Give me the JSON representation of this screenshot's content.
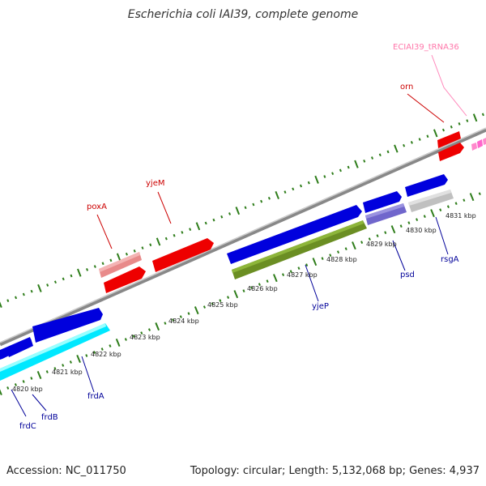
{
  "title": "Escherichia coli IAI39, complete genome",
  "accession": "Accession: NC_011750",
  "summary": "Topology: circular; Length: 5,132,068 bp; Genes: 4,937",
  "colors": {
    "red": "#ee0000",
    "pink": "#e88a8a",
    "blue": "#0000dd",
    "lightblue": "#8077d8",
    "gray": "#c0c0c0",
    "cyan": "#00ffff",
    "olive": "#6b8e23",
    "magenta": "#ff66cc",
    "backbone": "#888888",
    "ticks": "#2e7d1a",
    "gene_label_red": "#cc0000",
    "gene_label_blue": "#000099",
    "gene_label_pink": "#ff77aa"
  },
  "scale": [
    "4820 kbp",
    "4821 kbp",
    "4822 kbp",
    "4823 kbp",
    "4824 kbp",
    "4825 kbp",
    "4826 kbp",
    "4827 kbp",
    "4828 kbp",
    "4829 kbp",
    "4830 kbp",
    "4831 kbp"
  ],
  "gene_labels": {
    "trna": "ECIAI39_tRNA36",
    "orn": "orn",
    "yjeM": "yjeM",
    "poxA": "poxA",
    "frdC": "frdC",
    "frdB": "frdB",
    "frdA": "frdA",
    "yjeP": "yjeP",
    "psd": "psd",
    "rsgA": "rsgA"
  }
}
